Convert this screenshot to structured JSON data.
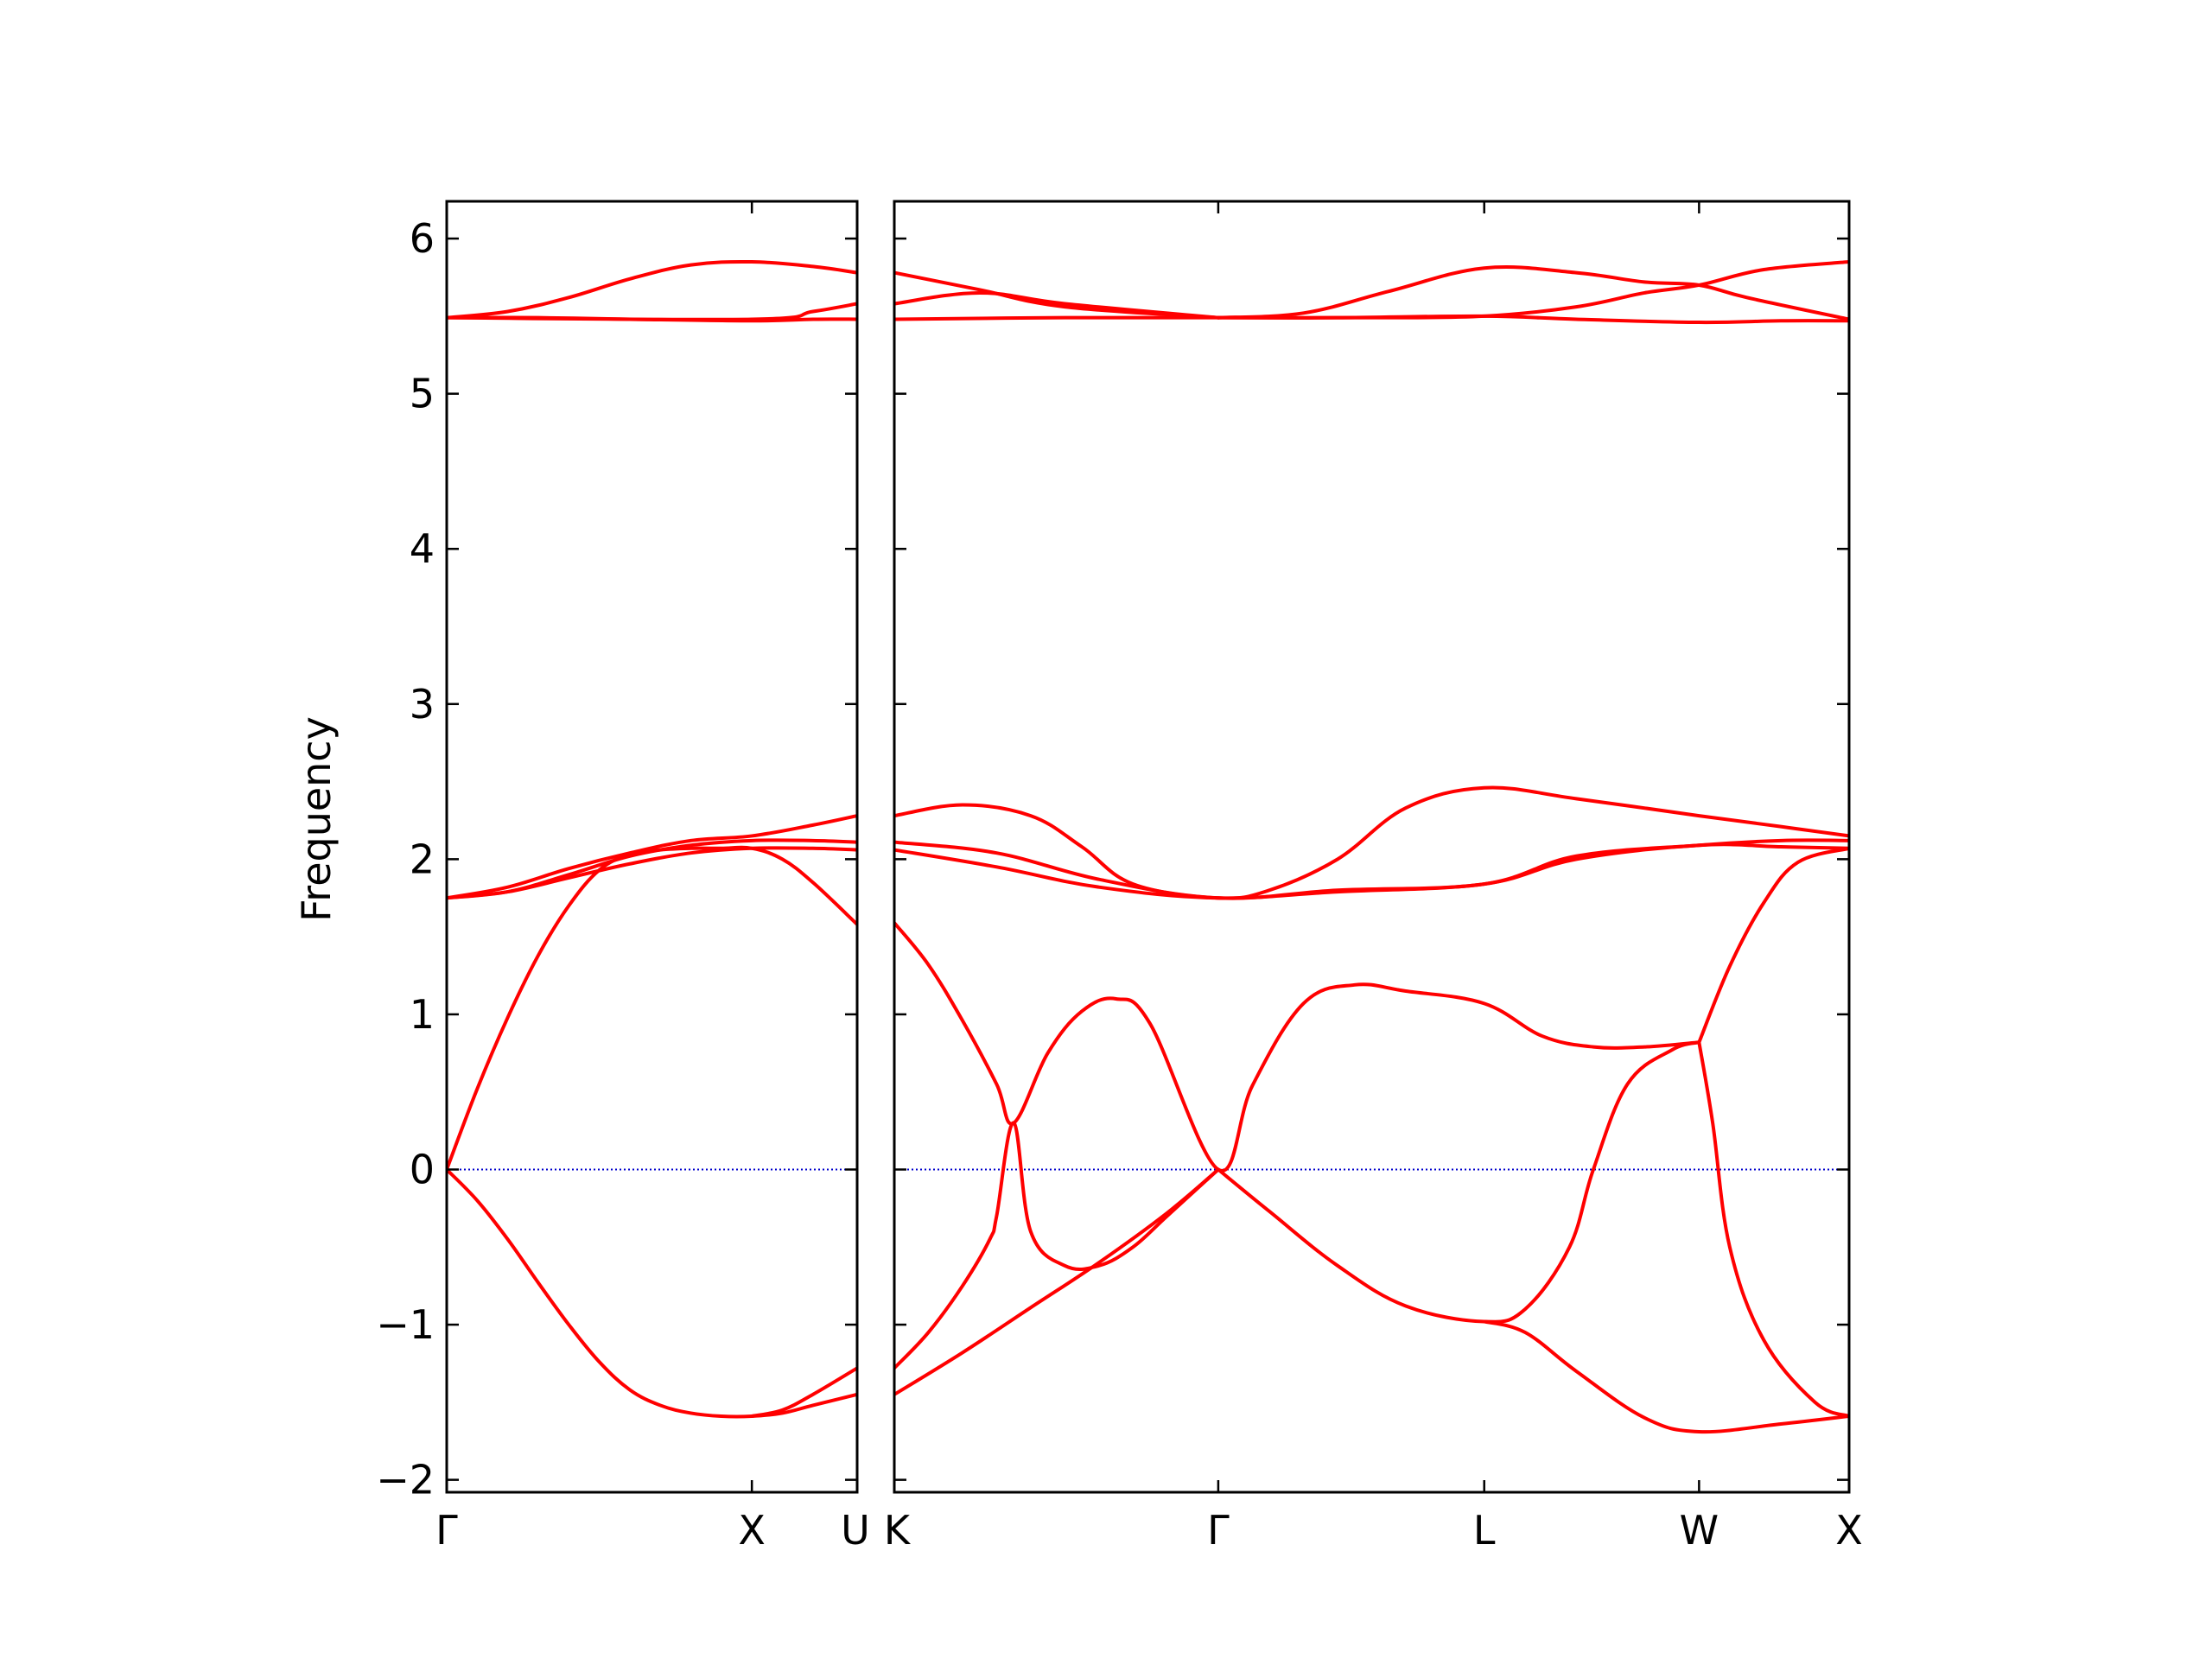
{
  "chart_data": {
    "type": "line",
    "ylabel": "Frequency",
    "ylim": [
      -2.08,
      6.24
    ],
    "yticks": [
      {
        "value": -2,
        "label": "−2"
      },
      {
        "value": -1,
        "label": "−1"
      },
      {
        "value": 0,
        "label": "0"
      },
      {
        "value": 1,
        "label": "1"
      },
      {
        "value": 2,
        "label": "2"
      },
      {
        "value": 3,
        "label": "3"
      },
      {
        "value": 4,
        "label": "4"
      },
      {
        "value": 5,
        "label": "5"
      },
      {
        "value": 6,
        "label": "6"
      }
    ],
    "line_color": "#ff0000",
    "zero_line_color": "#0000cc",
    "panels": [
      {
        "xlim": [
          0,
          1.345
        ],
        "xticks": [
          {
            "value": 0,
            "label": "Γ"
          },
          {
            "value": 1.0,
            "label": "X"
          },
          {
            "value": 1.345,
            "label": "U"
          }
        ],
        "bands": [
          {
            "x": [
              0,
              0.2,
              0.4,
              0.6,
              0.8,
              1.0,
              1.2,
              1.345
            ],
            "y": [
              5.49,
              5.53,
              5.62,
              5.74,
              5.83,
              5.85,
              5.82,
              5.78
            ]
          },
          {
            "x": [
              0,
              0.3,
              0.6,
              1.0,
              1.2,
              1.345
            ],
            "y": [
              5.49,
              5.49,
              5.48,
              5.47,
              5.48,
              5.48
            ]
          },
          {
            "x": [
              0,
              1.0,
              1.2,
              1.345
            ],
            "y": [
              5.49,
              5.48,
              5.53,
              5.58
            ]
          },
          {
            "x": [
              0,
              0.2,
              0.4,
              0.6,
              0.8,
              1.0,
              1.2,
              1.345
            ],
            "y": [
              1.75,
              1.82,
              1.94,
              2.04,
              2.12,
              2.15,
              2.22,
              2.28
            ]
          },
          {
            "x": [
              0,
              0.2,
              0.4,
              0.6,
              0.8,
              1.0,
              1.2,
              1.345
            ],
            "y": [
              1.75,
              1.79,
              1.88,
              1.97,
              2.04,
              2.07,
              2.07,
              2.06
            ]
          },
          {
            "x": [
              0,
              0.2,
              0.4,
              0.6,
              0.8,
              1.0,
              1.2,
              1.345
            ],
            "y": [
              1.75,
              1.79,
              1.9,
              2.02,
              2.09,
              2.12,
              2.12,
              2.11
            ]
          },
          {
            "x": [
              0,
              0.1,
              0.2,
              0.3,
              0.4,
              0.5,
              0.6,
              0.7,
              0.8,
              0.9,
              1.0,
              1.1,
              1.2,
              1.345
            ],
            "y": [
              0.0,
              0.52,
              0.98,
              1.38,
              1.7,
              1.93,
              2.03,
              2.06,
              2.07,
              2.07,
              2.07,
              2.0,
              1.85,
              1.58
            ]
          },
          {
            "x": [
              0,
              0.1,
              0.2,
              0.3,
              0.4,
              0.5,
              0.6,
              0.7,
              0.8,
              0.9,
              1.0,
              1.1,
              1.2,
              1.345
            ],
            "y": [
              0.0,
              -0.2,
              -0.45,
              -0.73,
              -1.0,
              -1.24,
              -1.42,
              -1.52,
              -1.57,
              -1.59,
              -1.59,
              -1.57,
              -1.52,
              -1.45
            ]
          },
          {
            "x": [
              1.0,
              1.1,
              1.2,
              1.345
            ],
            "y": [
              -1.59,
              -1.55,
              -1.45,
              -1.28
            ]
          }
        ]
      },
      {
        "xlim": [
          0,
          2.8
        ],
        "xticks": [
          {
            "value": 0,
            "label": "K"
          },
          {
            "value": 0.95,
            "label": "Γ"
          },
          {
            "value": 1.73,
            "label": "L"
          },
          {
            "value": 2.36,
            "label": "W"
          },
          {
            "value": 2.8,
            "label": "X"
          }
        ],
        "bands": [
          {
            "x": [
              0,
              0.25,
              0.5,
              0.95
            ],
            "y": [
              5.78,
              5.67,
              5.56,
              5.49
            ]
          },
          {
            "x": [
              0,
              0.25,
              0.5,
              0.95
            ],
            "y": [
              5.58,
              5.65,
              5.58,
              5.49
            ]
          },
          {
            "x": [
              0,
              0.5,
              0.95,
              1.3,
              1.73,
              2.0,
              2.36,
              2.6,
              2.8
            ],
            "y": [
              5.48,
              5.49,
              5.49,
              5.49,
              5.5,
              5.48,
              5.46,
              5.47,
              5.47
            ]
          },
          {
            "x": [
              0.95,
              1.2,
              1.45,
              1.73,
              2.0,
              2.2,
              2.36,
              2.5,
              2.8
            ],
            "y": [
              5.49,
              5.52,
              5.66,
              5.81,
              5.78,
              5.72,
              5.7,
              5.62,
              5.48
            ]
          },
          {
            "x": [
              0.95,
              1.4,
              1.73,
              2.0,
              2.2,
              2.36,
              2.55,
              2.8
            ],
            "y": [
              5.49,
              5.49,
              5.5,
              5.56,
              5.65,
              5.7,
              5.8,
              5.85
            ]
          },
          {
            "x": [
              0,
              0.2,
              0.4,
              0.55,
              0.7,
              0.95,
              1.1,
              1.3,
              1.5,
              1.73,
              2.0,
              2.36,
              2.6,
              2.8
            ],
            "y": [
              2.28,
              2.35,
              2.28,
              2.08,
              1.84,
              1.75,
              1.8,
              2.0,
              2.33,
              2.46,
              2.39,
              2.28,
              2.21,
              2.15
            ]
          },
          {
            "x": [
              0,
              0.3,
              0.6,
              0.95,
              1.3,
              1.73,
              2.0,
              2.36,
              2.6,
              2.8
            ],
            "y": [
              2.11,
              2.04,
              1.87,
              1.75,
              1.8,
              1.84,
              2.02,
              2.09,
              2.12,
              2.12
            ]
          },
          {
            "x": [
              0,
              0.3,
              0.6,
              0.95,
              1.3,
              1.73,
              2.0,
              2.36,
              2.6,
              2.8
            ],
            "y": [
              2.06,
              1.95,
              1.82,
              1.75,
              1.79,
              1.84,
              2.0,
              2.09,
              2.08,
              2.07
            ]
          },
          {
            "x": [
              0,
              0.1,
              0.2,
              0.3,
              0.35,
              0.45,
              0.55,
              0.65,
              0.75,
              0.95,
              1.05,
              1.2,
              1.35,
              1.5,
              1.73,
              1.9,
              2.05,
              2.2,
              2.36
            ],
            "y": [
              1.59,
              1.32,
              0.96,
              0.55,
              0.3,
              0.75,
              1.02,
              1.1,
              0.94,
              0.0,
              0.54,
              1.07,
              1.19,
              1.15,
              1.07,
              0.86,
              0.79,
              0.79,
              0.82
            ]
          },
          {
            "x": [
              0,
              0.1,
              0.2,
              0.28,
              0.3,
              0.35,
              0.4,
              0.5,
              0.6,
              0.7,
              0.8,
              0.95
            ],
            "y": [
              -1.28,
              -1.05,
              -0.75,
              -0.45,
              -0.3,
              0.3,
              -0.4,
              -0.62,
              -0.62,
              -0.5,
              -0.3,
              0.0
            ]
          },
          {
            "x": [
              0,
              0.2,
              0.4,
              0.6,
              0.8,
              0.95
            ],
            "y": [
              -1.45,
              -1.18,
              -0.89,
              -0.6,
              -0.28,
              0.0
            ]
          },
          {
            "x": [
              0.95,
              1.1,
              1.3,
              1.5,
              1.73,
              1.85,
              1.98,
              2.05,
              2.15,
              2.28,
              2.36
            ],
            "y": [
              0.0,
              -0.27,
              -0.62,
              -0.88,
              -0.98,
              -0.9,
              -0.5,
              0.0,
              0.55,
              0.77,
              0.82
            ]
          },
          {
            "x": [
              1.73,
              1.85,
              2.0,
              2.2,
              2.36,
              2.6,
              2.8
            ],
            "y": [
              -0.98,
              -1.05,
              -1.3,
              -1.6,
              -1.69,
              -1.64,
              -1.59
            ]
          },
          {
            "x": [
              2.36,
              2.4,
              2.45,
              2.55,
              2.7,
              2.8
            ],
            "y": [
              0.82,
              0.3,
              -0.5,
              -1.1,
              -1.5,
              -1.59
            ]
          },
          {
            "x": [
              2.36,
              2.45,
              2.55,
              2.65,
              2.8
            ],
            "y": [
              0.82,
              1.31,
              1.72,
              1.98,
              2.07
            ]
          }
        ]
      }
    ]
  }
}
